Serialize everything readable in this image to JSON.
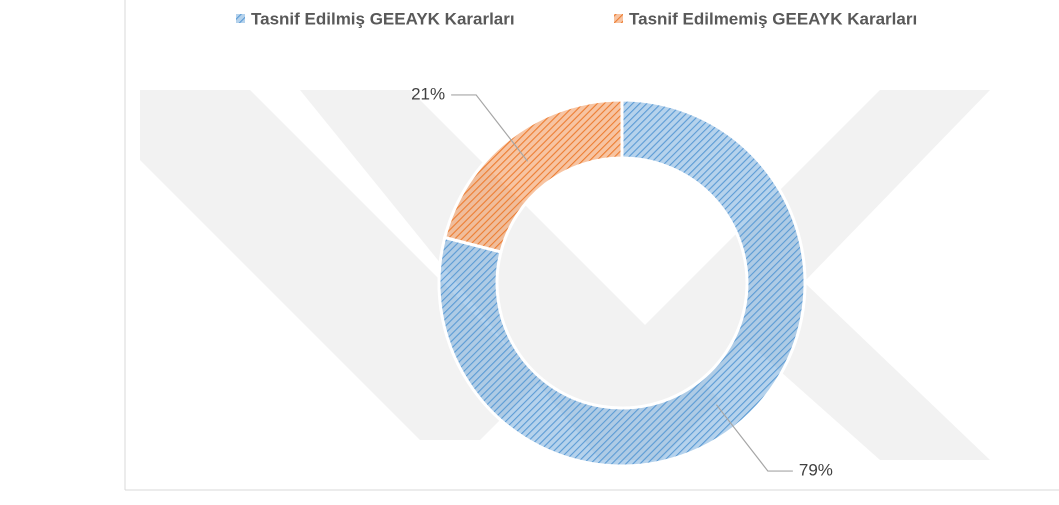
{
  "chart_data": {
    "type": "donut",
    "categories": [
      "Tasnif Edilmiş GEEAYK Kararları",
      "Tasnif Edilmemiş GEEAYK Kararları"
    ],
    "values": [
      79,
      21
    ],
    "value_labels": [
      "79%",
      "21%"
    ],
    "colors": [
      "#5b9bd5",
      "#ed7d31"
    ],
    "legend": "top"
  }
}
